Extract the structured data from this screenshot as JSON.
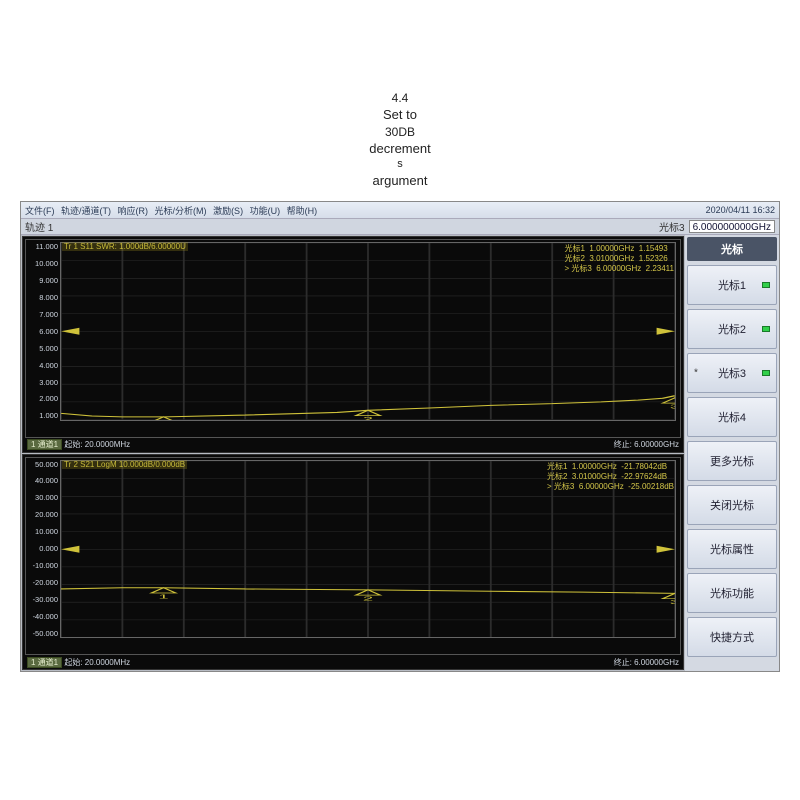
{
  "header_text": {
    "l1": "4.4",
    "l2": "Set to",
    "l3": "30DB",
    "l4": "decrement",
    "l5": "s",
    "l6": "argument"
  },
  "menu": {
    "items": [
      "文件(F)",
      "轨迹/通道(T)",
      "响应(R)",
      "光标/分析(M)",
      "激励(S)",
      "功能(U)",
      "帮助(H)"
    ],
    "datetime": "2020/04/11 16:32"
  },
  "topbar": {
    "left_label": "轨迹 1",
    "marker_label": "光标3",
    "marker_value": "6.000000000GHz"
  },
  "sidebar": {
    "head": "光标",
    "items": [
      {
        "label": "光标1",
        "led": true,
        "star": false
      },
      {
        "label": "光标2",
        "led": true,
        "star": false
      },
      {
        "label": "光标3",
        "led": true,
        "star": true
      },
      {
        "label": "光标4",
        "led": false,
        "star": false
      },
      {
        "label": "更多光标",
        "led": false,
        "star": false
      },
      {
        "label": "关闭光标",
        "led": false,
        "star": false
      },
      {
        "label": "光标属性",
        "led": false,
        "star": false
      },
      {
        "label": "光标功能",
        "led": false,
        "star": false
      },
      {
        "label": "快捷方式",
        "led": false,
        "star": false
      }
    ]
  },
  "charts": [
    {
      "trace_header": "Tr 1  S11 SWR: 1.000dB/6.00000U",
      "marker_lines": [
        "光标1  1.00000GHz  1.15493",
        "光标2  3.01000GHz  1.52326",
        "> 光标3  6.00000GHz  2.23411"
      ],
      "yaxis_ticks": [
        "11.000",
        "10.000",
        "9.000",
        "8.000",
        "7.000",
        "6.000",
        "5.000",
        "4.000",
        "3.000",
        "2.000",
        "1.000"
      ],
      "yaxis_min": 1.0,
      "yaxis_max": 11.0,
      "status_left_chip": "1 通道1",
      "status_left_text": "起始: 20.0000MHz",
      "status_right": "终止: 6.00000GHz",
      "trace_color": "#cfc23a",
      "grid_color": "#2c2c2c",
      "bg_color": "#0a0a0a",
      "line": [
        {
          "x": 0.0,
          "y": 1.35
        },
        {
          "x": 0.05,
          "y": 1.2
        },
        {
          "x": 0.1,
          "y": 1.15
        },
        {
          "x": 0.17,
          "y": 1.15
        },
        {
          "x": 0.3,
          "y": 1.25
        },
        {
          "x": 0.45,
          "y": 1.4
        },
        {
          "x": 0.5,
          "y": 1.52
        },
        {
          "x": 0.6,
          "y": 1.65
        },
        {
          "x": 0.7,
          "y": 1.8
        },
        {
          "x": 0.8,
          "y": 1.9
        },
        {
          "x": 0.88,
          "y": 2.0
        },
        {
          "x": 0.94,
          "y": 2.1
        },
        {
          "x": 0.98,
          "y": 2.2
        },
        {
          "x": 1.0,
          "y": 2.35
        }
      ],
      "markers": [
        {
          "x": 0.167,
          "y": 1.15
        },
        {
          "x": 0.5,
          "y": 1.52
        },
        {
          "x": 1.0,
          "y": 2.23
        }
      ],
      "highlight_y": 6.0
    },
    {
      "trace_header": "Tr 2  S21 LogM 10.000dB/0.000dB",
      "marker_lines": [
        "光标1  1.00000GHz  -21.78042dB",
        "光标2  3.01000GHz  -22.97624dB",
        "> 光标3  6.00000GHz  -25.00218dB"
      ],
      "yaxis_ticks": [
        "50.000",
        "40.000",
        "30.000",
        "20.000",
        "10.000",
        "0.000",
        "-10.000",
        "-20.000",
        "-30.000",
        "-40.000",
        "-50.000"
      ],
      "yaxis_min": -50.0,
      "yaxis_max": 50.0,
      "status_left_chip": "1 通道1",
      "status_left_text": "起始: 20.0000MHz",
      "status_right": "终止: 6.00000GHz",
      "trace_color": "#cfc23a",
      "grid_color": "#2c2c2c",
      "bg_color": "#0a0a0a",
      "line": [
        {
          "x": 0.0,
          "y": -22.5
        },
        {
          "x": 0.1,
          "y": -21.8
        },
        {
          "x": 0.167,
          "y": -21.8
        },
        {
          "x": 0.3,
          "y": -22.5
        },
        {
          "x": 0.5,
          "y": -23.0
        },
        {
          "x": 0.7,
          "y": -23.8
        },
        {
          "x": 0.85,
          "y": -24.3
        },
        {
          "x": 1.0,
          "y": -25.0
        }
      ],
      "markers": [
        {
          "x": 0.167,
          "y": -21.8
        },
        {
          "x": 0.5,
          "y": -23.0
        },
        {
          "x": 1.0,
          "y": -25.0
        }
      ],
      "highlight_y": 0.0
    }
  ]
}
